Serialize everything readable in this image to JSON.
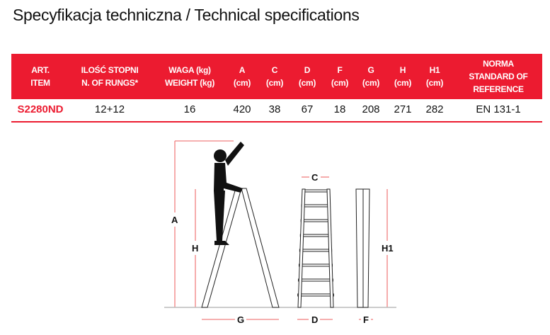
{
  "title": "Specyfikacja techniczna / Technical specifications",
  "accent_color": "#ec1b30",
  "table": {
    "headers": [
      [
        "ART.",
        "ITEM"
      ],
      [
        "ILOŚĆ STOPNI",
        "N. OF RUNGS*"
      ],
      [
        "WAGA (kg)",
        "WEIGHT  (kg)"
      ],
      [
        "A",
        "(cm)"
      ],
      [
        "C",
        "(cm)"
      ],
      [
        "D",
        "(cm)"
      ],
      [
        "F",
        "(cm)"
      ],
      [
        "G",
        "(cm)"
      ],
      [
        "H",
        "(cm)"
      ],
      [
        "H1",
        "(cm)"
      ],
      [
        "NORMA",
        "STANDARD OF",
        "REFERENCE"
      ]
    ],
    "rows": [
      [
        "S2280ND",
        "12+12",
        "16",
        "420",
        "38",
        "67",
        "18",
        "208",
        "271",
        "282",
        "EN 131-1"
      ]
    ]
  },
  "diagram": {
    "labels": {
      "A": "A",
      "H": "H",
      "C": "C",
      "H1": "H1",
      "G": "G",
      "D": "D",
      "F": "F"
    }
  }
}
